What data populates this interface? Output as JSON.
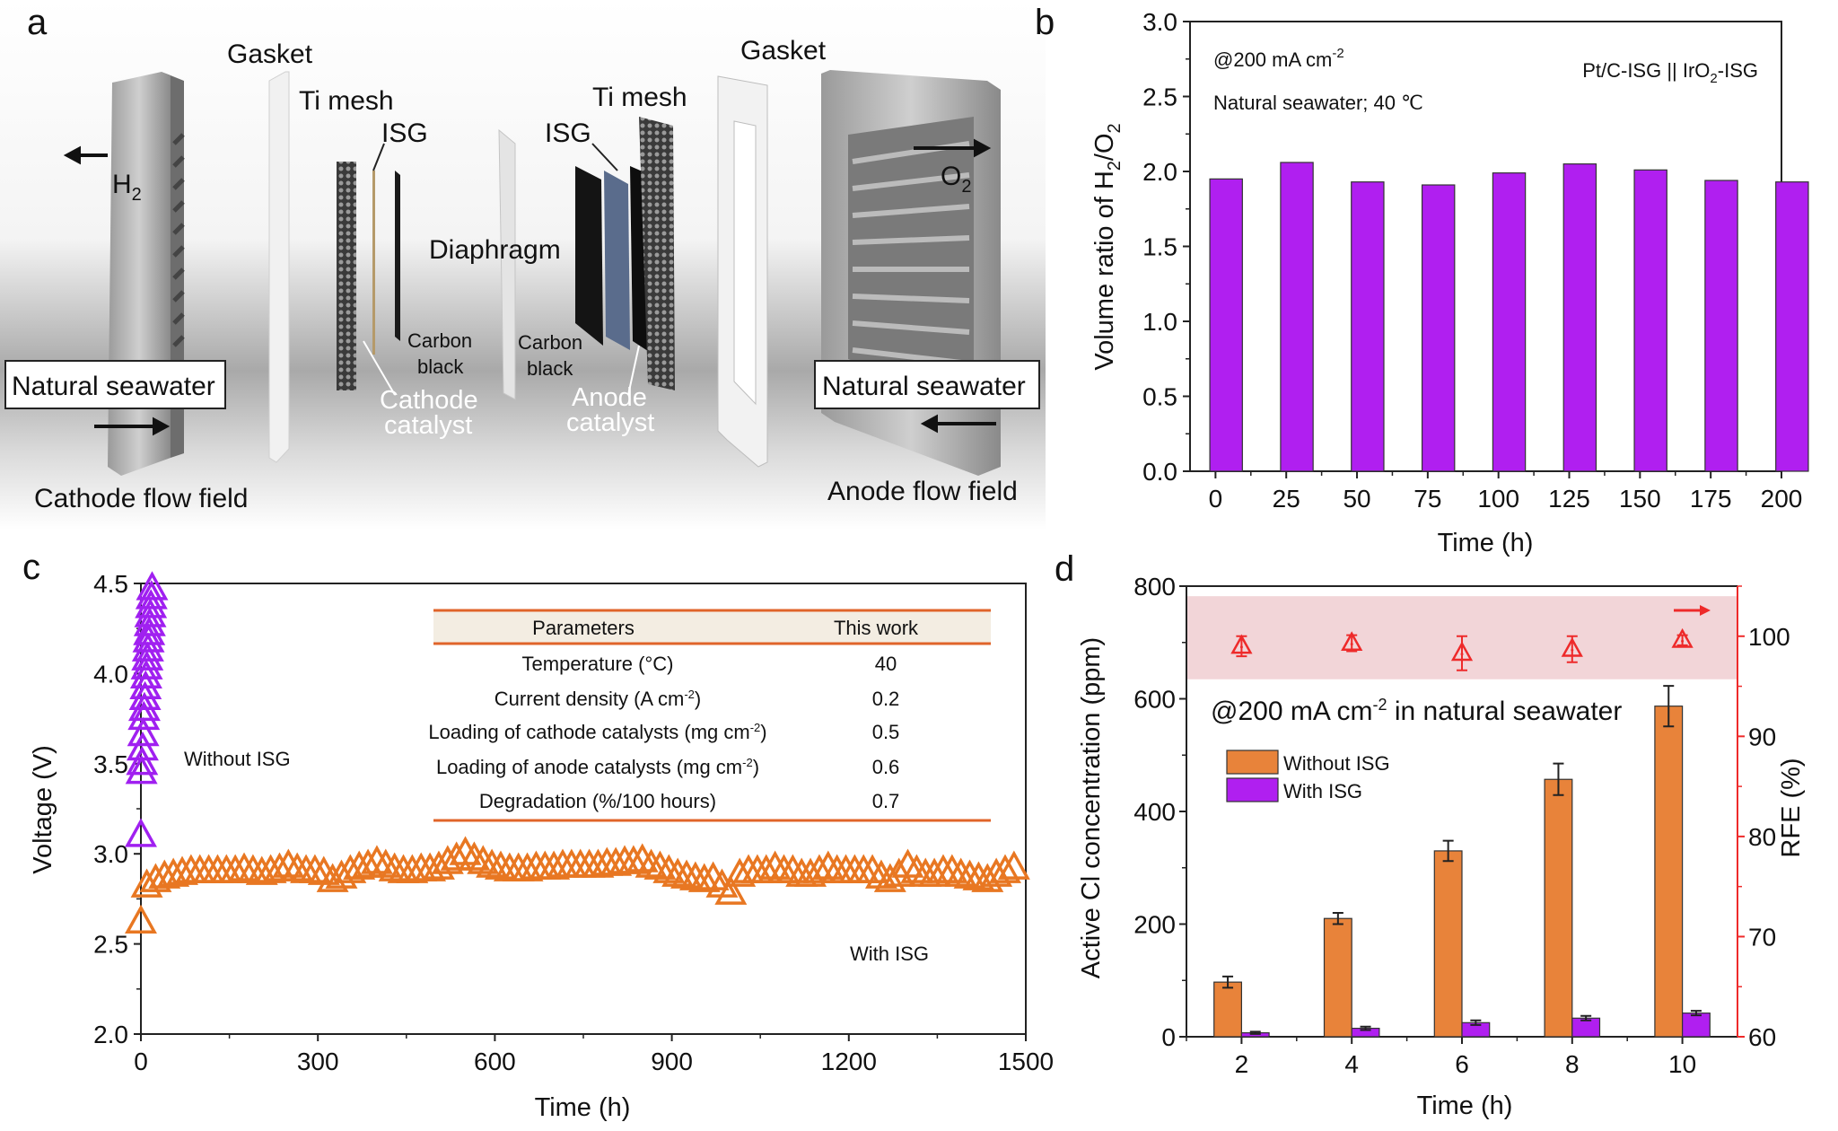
{
  "panel_labels": {
    "a": "a",
    "b": "b",
    "c": "c",
    "d": "d"
  },
  "panel_a": {
    "gasket_left": "Gasket",
    "gasket_right": "Gasket",
    "ti_mesh_left": "Ti mesh",
    "ti_mesh_right": "Ti mesh",
    "isg_left": "ISG",
    "isg_right": "ISG",
    "diaphragm": "Diaphragm",
    "h2": "H",
    "h2_sub": "2",
    "o2": "O",
    "o2_sub": "2",
    "carbon_black_left": [
      "Carbon",
      "black"
    ],
    "carbon_black_right": [
      "Carbon",
      "black"
    ],
    "cathode_catalyst": [
      "Cathode",
      "catalyst"
    ],
    "anode_catalyst": [
      "Anode",
      "catalyst"
    ],
    "seawater_left": "Natural seawater",
    "seawater_right": "Natural seawater",
    "cathode_flow_field": "Cathode flow field",
    "anode_flow_field": "Anode flow field"
  },
  "chart_data": [
    {
      "panel": "b",
      "type": "bar",
      "x": [
        0,
        25,
        50,
        75,
        100,
        125,
        150,
        175,
        200
      ],
      "values": [
        1.95,
        2.06,
        1.93,
        1.91,
        1.99,
        2.05,
        2.01,
        1.94,
        1.93
      ],
      "xlabel": "Time (h)",
      "ylabel": "Volume ratio of H2/O2",
      "ylabel_parts": [
        "Volume ratio of H",
        "2",
        "/O",
        "2"
      ],
      "xlim": [
        -9,
        200
      ],
      "ylim": [
        0,
        3.0
      ],
      "xticks": [
        "0",
        "25",
        "50",
        "75",
        "100",
        "125",
        "150",
        "175",
        "200"
      ],
      "yticks": [
        "0.0",
        "0.5",
        "1.0",
        "1.5",
        "2.0",
        "2.5",
        "3.0"
      ],
      "annotations": {
        "current": "@200 mA cm",
        "current_sup": "-2",
        "conditions": "Natural seawater; 40 ℃",
        "system": "Pt/C-ISG || IrO",
        "system_sub": "2",
        "system_end": "-ISG"
      },
      "color": "#b01ff0",
      "grid": false
    },
    {
      "panel": "c",
      "type": "scatter",
      "xlabel": "Time (h)",
      "ylabel": "Voltage (V)",
      "xlim": [
        0,
        1500
      ],
      "ylim": [
        2.0,
        4.5
      ],
      "xticks": [
        "0",
        "300",
        "600",
        "900",
        "1200",
        "1500"
      ],
      "yticks": [
        "2.0",
        "2.5",
        "3.0",
        "3.5",
        "4.0",
        "4.5"
      ],
      "series": [
        {
          "name": "Without ISG",
          "color": "#a020f0",
          "x": [
            0,
            1,
            2,
            3,
            4,
            5,
            6,
            7,
            8,
            9,
            10,
            11,
            12,
            13,
            14,
            15,
            16,
            17,
            18,
            19
          ],
          "y": [
            3.1,
            3.45,
            3.5,
            3.58,
            3.66,
            3.75,
            3.8,
            3.86,
            3.92,
            3.98,
            4.03,
            4.08,
            4.13,
            4.18,
            4.22,
            4.27,
            4.32,
            4.37,
            4.42,
            4.47
          ]
        },
        {
          "name": "With ISG",
          "color": "#e87722",
          "x": [
            0,
            10,
            25,
            40,
            55,
            70,
            85,
            100,
            115,
            130,
            145,
            160,
            175,
            190,
            205,
            220,
            235,
            250,
            265,
            280,
            295,
            310,
            325,
            340,
            355,
            370,
            385,
            400,
            415,
            430,
            445,
            460,
            475,
            490,
            505,
            520,
            535,
            550,
            565,
            580,
            595,
            610,
            625,
            640,
            655,
            670,
            685,
            700,
            715,
            730,
            745,
            760,
            775,
            790,
            805,
            820,
            835,
            850,
            865,
            880,
            895,
            910,
            925,
            940,
            955,
            970,
            985,
            1000,
            1015,
            1030,
            1045,
            1060,
            1075,
            1090,
            1105,
            1120,
            1135,
            1150,
            1165,
            1180,
            1195,
            1210,
            1225,
            1240,
            1255,
            1270,
            1285,
            1300,
            1315,
            1330,
            1345,
            1360,
            1375,
            1390,
            1405,
            1420,
            1435,
            1450,
            1465,
            1480
          ],
          "y": [
            2.62,
            2.82,
            2.85,
            2.87,
            2.88,
            2.89,
            2.9,
            2.9,
            2.9,
            2.9,
            2.9,
            2.9,
            2.91,
            2.9,
            2.89,
            2.9,
            2.91,
            2.93,
            2.91,
            2.9,
            2.9,
            2.89,
            2.85,
            2.87,
            2.9,
            2.92,
            2.93,
            2.95,
            2.93,
            2.91,
            2.9,
            2.9,
            2.91,
            2.91,
            2.92,
            2.95,
            2.97,
            3.0,
            2.97,
            2.95,
            2.93,
            2.92,
            2.91,
            2.91,
            2.91,
            2.92,
            2.92,
            2.92,
            2.93,
            2.93,
            2.93,
            2.93,
            2.93,
            2.94,
            2.94,
            2.95,
            2.95,
            2.96,
            2.93,
            2.92,
            2.9,
            2.88,
            2.87,
            2.86,
            2.85,
            2.86,
            2.82,
            2.78,
            2.88,
            2.9,
            2.9,
            2.9,
            2.92,
            2.9,
            2.9,
            2.88,
            2.88,
            2.9,
            2.92,
            2.9,
            2.9,
            2.9,
            2.9,
            2.9,
            2.87,
            2.85,
            2.88,
            2.93,
            2.9,
            2.88,
            2.88,
            2.9,
            2.9,
            2.88,
            2.87,
            2.86,
            2.85,
            2.88,
            2.9,
            2.92
          ]
        }
      ],
      "labels": {
        "without": "Without ISG",
        "with": "With ISG"
      },
      "table": {
        "headers": [
          "Parameters",
          "This work"
        ],
        "rows": [
          {
            "param": "Temperature (°C)",
            "sup": "",
            "end": "",
            "value": "40"
          },
          {
            "param": "Current density (A cm",
            "sup": "-2",
            "end": ")",
            "value": "0.2"
          },
          {
            "param": "Loading of cathode catalysts (mg cm",
            "sup": "-2",
            "end": ")",
            "value": "0.5"
          },
          {
            "param": "Loading of anode catalysts (mg cm",
            "sup": "-2",
            "end": ")",
            "value": "0.6"
          },
          {
            "param": "Degradation (%/100 hours)",
            "sup": "",
            "end": "",
            "value": "0.7"
          }
        ],
        "rule_color": "#e0642a",
        "header_bg": "#f3ede2"
      },
      "grid": false
    },
    {
      "panel": "d",
      "type": "bar",
      "categories": [
        2,
        4,
        6,
        8,
        10
      ],
      "xlim": [
        1,
        11
      ],
      "ylim": [
        0,
        800
      ],
      "y2lim": [
        60,
        105
      ],
      "xlabel": "Time (h)",
      "ylabel": "Active Cl concentration (ppm)",
      "y2label": "RFE (%)",
      "xticks": [
        "2",
        "4",
        "6",
        "8",
        "10"
      ],
      "yticks": [
        "0",
        "200",
        "400",
        "600",
        "800"
      ],
      "y2ticks": [
        "60",
        "70",
        "80",
        "90",
        "100"
      ],
      "annotation": "@200 mA cm",
      "annotation_sup": "-2",
      "annotation_end": " in natural seawater",
      "series": [
        {
          "name": "Without ISG",
          "color": "#e8833a",
          "values": [
            97,
            210,
            330,
            457,
            587
          ],
          "errors": [
            10,
            10,
            18,
            28,
            36
          ]
        },
        {
          "name": "With ISG",
          "color": "#b01ff0",
          "values": [
            7,
            15,
            25,
            33,
            42
          ],
          "errors": [
            2,
            3,
            4,
            4,
            4
          ]
        },
        {
          "name": "RFE",
          "axis": "right",
          "color": "#ee2a2a",
          "values": [
            99.0,
            99.3,
            98.3,
            98.7,
            99.6
          ],
          "errors": [
            1.0,
            0.8,
            1.7,
            1.3,
            0.5
          ]
        }
      ],
      "rfe_band": [
        95.7,
        104
      ],
      "band_color": "#f2d5d8",
      "legend_position": "upper-left",
      "grid": false
    }
  ]
}
